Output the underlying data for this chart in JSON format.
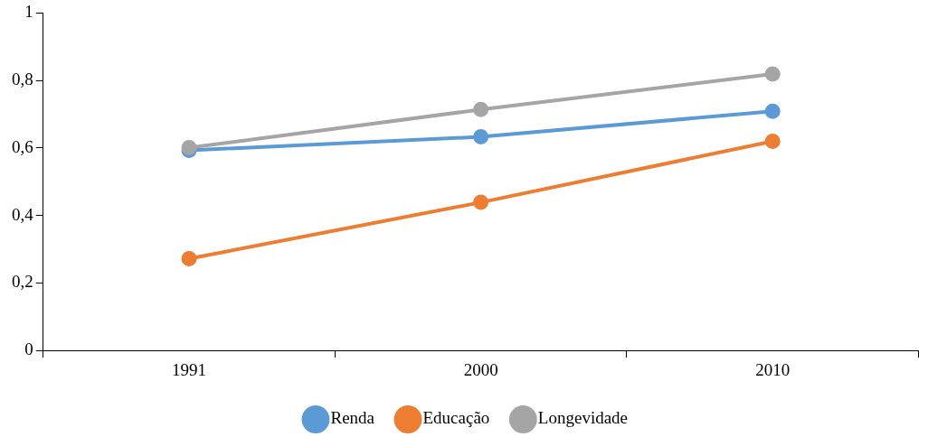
{
  "chart_data": {
    "type": "line",
    "categories": [
      "1991",
      "2000",
      "2010"
    ],
    "series": [
      {
        "name": "Renda",
        "color": "#5b9bd5",
        "values": [
          0.593,
          0.633,
          0.709
        ]
      },
      {
        "name": "Educação",
        "color": "#ed7d31",
        "values": [
          0.272,
          0.439,
          0.62
        ]
      },
      {
        "name": "Longevidade",
        "color": "#a5a5a5",
        "values": [
          0.601,
          0.714,
          0.819
        ]
      }
    ],
    "ylim": [
      0,
      1
    ],
    "yticks": [
      {
        "value": 0,
        "label": "0"
      },
      {
        "value": 0.2,
        "label": "0,2"
      },
      {
        "value": 0.4,
        "label": "0,4"
      },
      {
        "value": 0.6,
        "label": "0,6"
      },
      {
        "value": 0.8,
        "label": "0,8"
      },
      {
        "value": 1,
        "label": "1"
      }
    ],
    "grid": false,
    "legend": "bottom",
    "marker": "circle",
    "line_style": "solid"
  }
}
